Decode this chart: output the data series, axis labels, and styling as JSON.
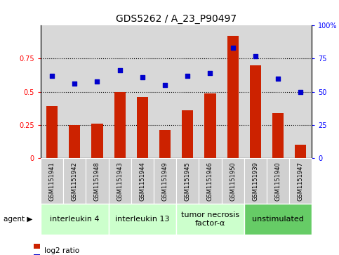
{
  "title": "GDS5262 / A_23_P90497",
  "samples": [
    "GSM1151941",
    "GSM1151942",
    "GSM1151948",
    "GSM1151943",
    "GSM1151944",
    "GSM1151949",
    "GSM1151945",
    "GSM1151946",
    "GSM1151950",
    "GSM1151939",
    "GSM1151940",
    "GSM1151947"
  ],
  "log2_ratio": [
    0.39,
    0.25,
    0.26,
    0.5,
    0.46,
    0.21,
    0.36,
    0.49,
    0.92,
    0.7,
    0.34,
    0.1
  ],
  "percentile_rank": [
    62,
    56,
    58,
    66,
    61,
    55,
    62,
    64,
    83,
    77,
    60,
    50
  ],
  "agents": [
    {
      "label": "interleukin 4",
      "start": 0,
      "end": 3,
      "color": "#ccffcc"
    },
    {
      "label": "interleukin 13",
      "start": 3,
      "end": 6,
      "color": "#ccffcc"
    },
    {
      "label": "tumor necrosis\nfactor-α",
      "start": 6,
      "end": 9,
      "color": "#ccffcc"
    },
    {
      "label": "unstimulated",
      "start": 9,
      "end": 12,
      "color": "#66cc66"
    }
  ],
  "bar_color": "#cc2200",
  "dot_color": "#0000cc",
  "left_ylim": [
    0,
    1.0
  ],
  "right_ylim": [
    0,
    100
  ],
  "left_yticks": [
    0,
    0.25,
    0.5,
    0.75
  ],
  "right_yticks": [
    0,
    25,
    50,
    75,
    100
  ],
  "dotted_lines": [
    0.25,
    0.5,
    0.75
  ],
  "plot_bg": "#d8d8d8",
  "sample_box_bg": "#d0d0d0",
  "title_fontsize": 10,
  "tick_fontsize": 7,
  "sample_fontsize": 6,
  "agent_fontsize": 8,
  "legend_fontsize": 7.5
}
